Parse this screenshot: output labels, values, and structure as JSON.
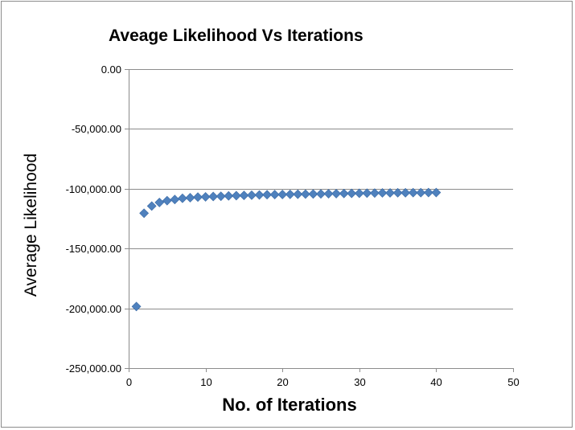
{
  "chart_data": {
    "type": "scatter",
    "title": "Aveage Likelihood Vs Iterations",
    "xlabel": "No. of Iterations",
    "ylabel": "Average Likelihood",
    "xlim": [
      0,
      50
    ],
    "ylim": [
      -250000,
      0
    ],
    "xticks": [
      0,
      10,
      20,
      30,
      40,
      50
    ],
    "xtick_labels": [
      "0",
      "10",
      "20",
      "30",
      "40",
      "50"
    ],
    "yticks": [
      0,
      -50000,
      -100000,
      -150000,
      -200000,
      -250000
    ],
    "ytick_labels": [
      "0.00",
      "-50,000.00",
      "-100,000.00",
      "-150,000.00",
      "-200,000.00",
      "-250,000.00"
    ],
    "grid": "horizontal",
    "legend": "none",
    "marker": "diamond",
    "marker_color": "#4f81bd",
    "series": [
      {
        "x": [
          1,
          2,
          3,
          4,
          5,
          6,
          7,
          8,
          9,
          10,
          11,
          12,
          13,
          14,
          15,
          16,
          17,
          18,
          19,
          20,
          21,
          22,
          23,
          24,
          25,
          26,
          27,
          28,
          29,
          30,
          31,
          32,
          33,
          34,
          35,
          36,
          37,
          38,
          39,
          40
        ],
        "y": [
          -198500,
          -120500,
          -114500,
          -111500,
          -110000,
          -109000,
          -108000,
          -107500,
          -107000,
          -106800,
          -106500,
          -106300,
          -106000,
          -105800,
          -105600,
          -105400,
          -105200,
          -105000,
          -104900,
          -104800,
          -104700,
          -104600,
          -104500,
          -104400,
          -104300,
          -104200,
          -104100,
          -104000,
          -103900,
          -103800,
          -103700,
          -103600,
          -103500,
          -103500,
          -103400,
          -103400,
          -103300,
          -103300,
          -103200,
          -103200
        ]
      }
    ]
  }
}
